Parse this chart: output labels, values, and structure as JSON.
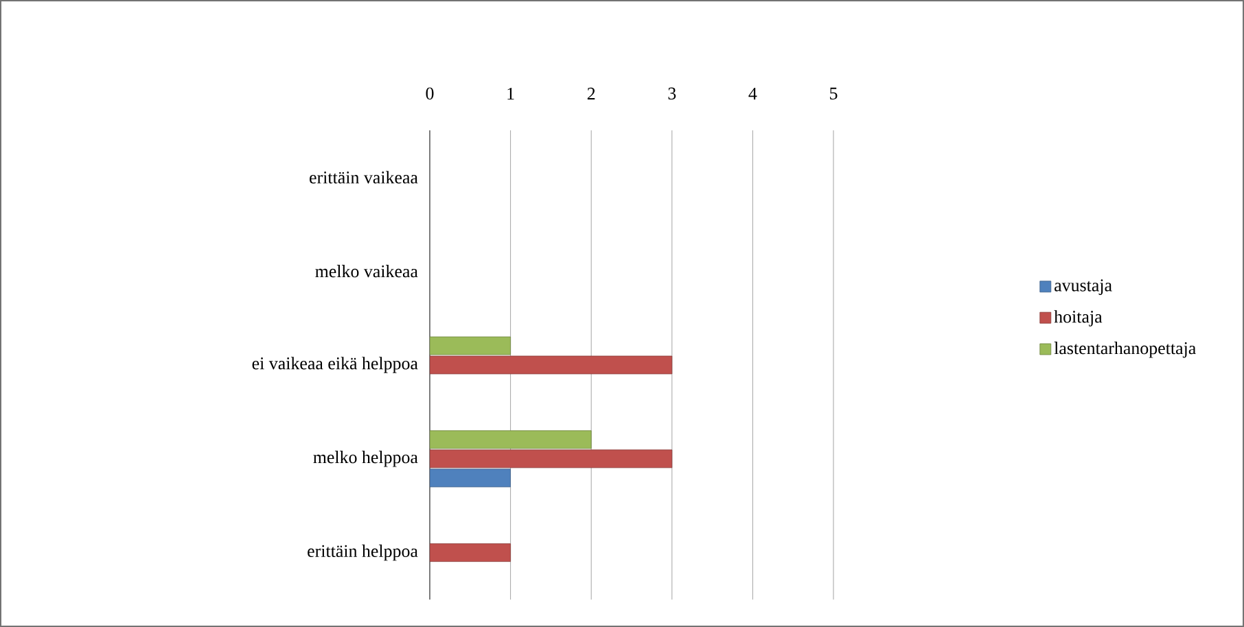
{
  "chart_data": {
    "type": "bar",
    "orientation": "horizontal",
    "categories": [
      "erittäin vaikeaa",
      "melko vaikeaa",
      "ei vaikeaa eikä helppoa",
      "melko helppoa",
      "erittäin helppoa"
    ],
    "series": [
      {
        "name": "avustaja",
        "color": "#4f81bd",
        "values": [
          0,
          0,
          0,
          1,
          0
        ]
      },
      {
        "name": "hoitaja",
        "color": "#c0504d",
        "values": [
          0,
          0,
          3,
          3,
          1
        ]
      },
      {
        "name": "lastentarhanopettaja",
        "color": "#9bbb59",
        "values": [
          0,
          0,
          1,
          2,
          0
        ]
      }
    ],
    "xlim": [
      0,
      5
    ],
    "xticks": [
      0,
      1,
      2,
      3,
      4,
      5
    ],
    "grid": "x",
    "legend": "right"
  }
}
